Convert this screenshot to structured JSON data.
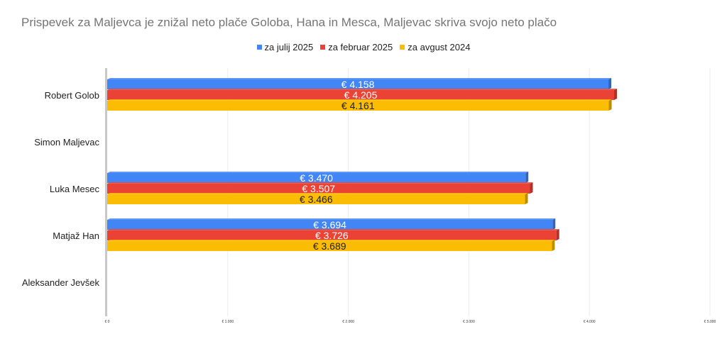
{
  "chart_data": {
    "type": "bar",
    "orientation": "horizontal",
    "title": "Prispevek za Maljevca je znižal neto plače Goloba, Hana in Mesca, Maljevac skriva svojo neto plačo",
    "categories": [
      "Robert Golob",
      "Simon Maljevac",
      "Luka Mesec",
      "Matjaž Han",
      "Aleksander Jevšek"
    ],
    "series": [
      {
        "name": "za julij 2025",
        "color": "#4285f4",
        "values": [
          4158,
          null,
          3470,
          3694,
          null
        ],
        "labels": [
          "€ 4.158",
          "",
          "€ 3.470",
          "€ 3.694",
          ""
        ]
      },
      {
        "name": "za februar 2025",
        "color": "#ea4335",
        "values": [
          4205,
          null,
          3507,
          3726,
          null
        ],
        "labels": [
          "€ 4.205",
          "",
          "€ 3.507",
          "€ 3.726",
          ""
        ]
      },
      {
        "name": "za avgust 2024",
        "color": "#fbbc04",
        "values": [
          4161,
          null,
          3466,
          3689,
          null
        ],
        "labels": [
          "€ 4.161",
          "",
          "€ 3.466",
          "€ 3.689",
          ""
        ]
      }
    ],
    "x_ticks": [
      "€ 0",
      "€ 1.000",
      "€ 2.000",
      "€ 3.000",
      "€ 4.000",
      "€ 5.000"
    ],
    "xlim": [
      0,
      5000
    ],
    "grid": true,
    "legend_position": "top"
  }
}
